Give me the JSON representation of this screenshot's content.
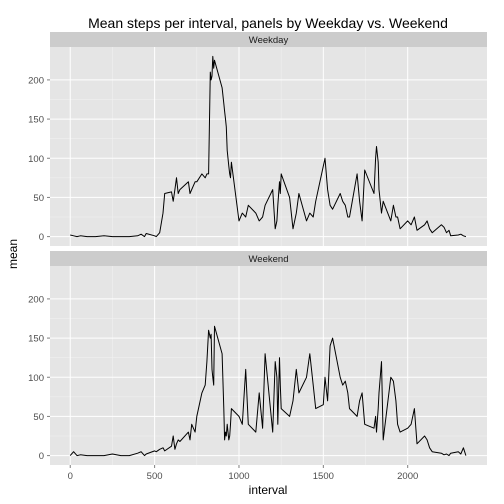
{
  "chart_data": {
    "type": "line",
    "title": "Mean steps per interval, panels by Weekday vs. Weekend",
    "xlabel": "interval",
    "ylabel": "mean",
    "xlim": [
      -120,
      2470
    ],
    "ylim": [
      -12,
      242
    ],
    "x_ticks": [
      0,
      500,
      1000,
      1500,
      2000
    ],
    "x_tick_labels": [
      "0",
      "500",
      "1000",
      "1500",
      "2000"
    ],
    "y_ticks": [
      0,
      50,
      100,
      150,
      200
    ],
    "y_tick_labels": [
      "0",
      "50",
      "100",
      "150",
      "200"
    ],
    "grid": true,
    "line_color": "#000000",
    "panel_background": "#e5e5e5",
    "strip_background": "#cccccc",
    "panels": [
      {
        "label": "Weekday",
        "x": [
          0,
          20,
          40,
          60,
          100,
          150,
          200,
          250,
          300,
          350,
          400,
          420,
          440,
          450,
          500,
          510,
          530,
          550,
          560,
          600,
          610,
          620,
          630,
          640,
          650,
          700,
          710,
          730,
          740,
          750,
          780,
          800,
          810,
          820,
          830,
          835,
          840,
          845,
          850,
          855,
          900,
          910,
          915,
          920,
          925,
          930,
          935,
          940,
          945,
          950,
          955,
          1000,
          1020,
          1040,
          1055,
          1100,
          1120,
          1140,
          1155,
          1200,
          1215,
          1225,
          1230,
          1240,
          1245,
          1250,
          1300,
          1320,
          1340,
          1355,
          1400,
          1420,
          1440,
          1455,
          1500,
          1510,
          1525,
          1540,
          1555,
          1600,
          1615,
          1630,
          1645,
          1655,
          1700,
          1715,
          1730,
          1745,
          1800,
          1810,
          1815,
          1825,
          1830,
          1845,
          1855,
          1900,
          1915,
          1930,
          1940,
          1955,
          2000,
          2020,
          2040,
          2055,
          2100,
          2115,
          2130,
          2145,
          2200,
          2215,
          2230,
          2245,
          2255,
          2300,
          2315,
          2330,
          2345
        ],
        "y": [
          2,
          1,
          0,
          1,
          0,
          0,
          1,
          0,
          0,
          0,
          1,
          3,
          0,
          4,
          1,
          0,
          5,
          30,
          55,
          57,
          45,
          60,
          75,
          55,
          60,
          70,
          55,
          65,
          70,
          70,
          80,
          75,
          80,
          80,
          210,
          200,
          205,
          230,
          215,
          225,
          190,
          170,
          160,
          150,
          140,
          110,
          100,
          90,
          80,
          75,
          95,
          20,
          30,
          25,
          40,
          30,
          20,
          25,
          40,
          60,
          10,
          20,
          40,
          70,
          55,
          80,
          50,
          10,
          30,
          55,
          20,
          30,
          25,
          45,
          90,
          100,
          60,
          40,
          35,
          55,
          45,
          40,
          25,
          25,
          80,
          45,
          20,
          85,
          55,
          100,
          115,
          95,
          60,
          30,
          45,
          20,
          40,
          25,
          25,
          10,
          20,
          15,
          25,
          8,
          15,
          20,
          10,
          5,
          15,
          12,
          5,
          8,
          1,
          2,
          3,
          1,
          0
        ],
        "data_points_approximate": true
      },
      {
        "label": "Weekend",
        "x": [
          0,
          20,
          40,
          60,
          100,
          150,
          200,
          250,
          300,
          350,
          400,
          420,
          440,
          450,
          500,
          510,
          530,
          550,
          560,
          600,
          610,
          620,
          630,
          640,
          650,
          700,
          710,
          720,
          740,
          750,
          780,
          800,
          810,
          820,
          830,
          835,
          840,
          845,
          850,
          855,
          900,
          910,
          915,
          920,
          925,
          930,
          935,
          940,
          945,
          950,
          955,
          1000,
          1020,
          1040,
          1055,
          1100,
          1120,
          1140,
          1155,
          1200,
          1215,
          1225,
          1230,
          1240,
          1245,
          1250,
          1300,
          1320,
          1340,
          1355,
          1400,
          1420,
          1440,
          1455,
          1500,
          1510,
          1525,
          1540,
          1555,
          1600,
          1615,
          1630,
          1645,
          1655,
          1700,
          1715,
          1730,
          1745,
          1800,
          1810,
          1815,
          1825,
          1830,
          1845,
          1855,
          1900,
          1915,
          1930,
          1940,
          1955,
          2000,
          2020,
          2040,
          2055,
          2100,
          2115,
          2130,
          2145,
          2200,
          2215,
          2230,
          2245,
          2255,
          2300,
          2315,
          2330,
          2345
        ],
        "y": [
          0,
          5,
          0,
          1,
          0,
          0,
          0,
          2,
          0,
          0,
          3,
          5,
          0,
          2,
          6,
          5,
          8,
          10,
          6,
          12,
          25,
          8,
          15,
          20,
          18,
          30,
          20,
          40,
          30,
          50,
          80,
          90,
          120,
          160,
          150,
          155,
          110,
          100,
          90,
          165,
          130,
          60,
          20,
          30,
          25,
          40,
          30,
          20,
          25,
          40,
          60,
          50,
          40,
          110,
          40,
          30,
          80,
          35,
          130,
          30,
          120,
          100,
          40,
          125,
          90,
          60,
          50,
          70,
          110,
          80,
          100,
          130,
          90,
          60,
          65,
          100,
          70,
          140,
          150,
          100,
          90,
          95,
          80,
          60,
          50,
          70,
          80,
          40,
          35,
          50,
          30,
          60,
          80,
          120,
          20,
          100,
          95,
          70,
          40,
          30,
          35,
          40,
          60,
          15,
          25,
          20,
          10,
          5,
          3,
          1,
          2,
          0,
          3,
          5,
          2,
          10,
          0
        ],
        "data_points_approximate": true
      }
    ]
  }
}
